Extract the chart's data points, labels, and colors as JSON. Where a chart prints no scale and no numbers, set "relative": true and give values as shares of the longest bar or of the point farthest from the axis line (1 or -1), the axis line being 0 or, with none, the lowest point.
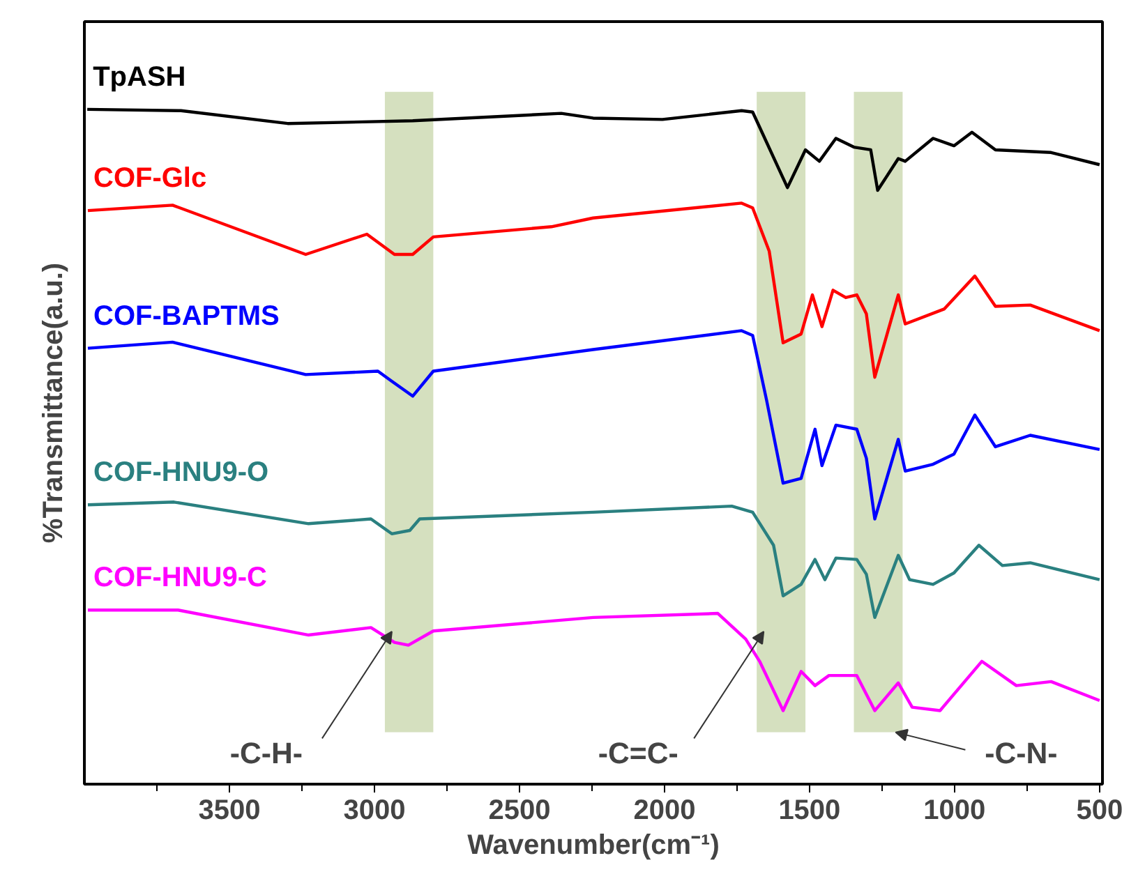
{
  "chart_data": {
    "type": "line",
    "relative": true,
    "xlabel": "Wavenumber(cm⁻¹)",
    "ylabel": "%Transmittance(a.u.)",
    "xlim": [
      4000,
      490
    ],
    "xticks": [
      {
        "value": 3750,
        "label": null
      },
      3500,
      {
        "value": 3250,
        "label": null
      },
      3000,
      {
        "value": 2750,
        "label": null
      },
      2500,
      {
        "value": 2250,
        "label": null
      },
      2000,
      {
        "value": 1750,
        "label": null
      },
      1500,
      {
        "value": 1250,
        "label": null
      },
      1000,
      {
        "value": 750,
        "label": null
      },
      500
    ],
    "legend": false,
    "grid": false,
    "series": [
      {
        "name": "TpASH",
        "color": "#000000",
        "x": [
          3990,
          3667,
          3299,
          2868,
          2356,
          2246,
          2007,
          1734,
          1696,
          1576,
          1514,
          1466,
          1409,
          1347,
          1289,
          1265,
          1194,
          1170,
          1074,
          1002,
          940,
          859,
          667,
          500
        ],
        "values": [
          1.0,
          0.998,
          0.979,
          0.983,
          0.994,
          0.987,
          0.985,
          0.998,
          0.996,
          0.884,
          0.94,
          0.923,
          0.957,
          0.944,
          0.94,
          0.88,
          0.927,
          0.923,
          0.957,
          0.946,
          0.966,
          0.94,
          0.936,
          0.918
        ]
      },
      {
        "name": "COF-Glc",
        "color": "#ff0000",
        "x": [
          3988,
          3696,
          3237,
          3026,
          2931,
          2868,
          2797,
          2390,
          2246,
          1734,
          1696,
          1639,
          1591,
          1529,
          1490,
          1457,
          1419,
          1375,
          1337,
          1304,
          1275,
          1194,
          1170,
          1036,
          930,
          859,
          739,
          500
        ],
        "values": [
          0.85,
          0.858,
          0.785,
          0.815,
          0.785,
          0.785,
          0.811,
          0.826,
          0.839,
          0.861,
          0.854,
          0.79,
          0.654,
          0.667,
          0.725,
          0.678,
          0.732,
          0.721,
          0.725,
          0.697,
          0.603,
          0.725,
          0.682,
          0.704,
          0.753,
          0.708,
          0.71,
          0.672
        ]
      },
      {
        "name": "COF-BAPTMS",
        "color": "#0000ff",
        "x": [
          3988,
          3696,
          3237,
          2988,
          2940,
          2868,
          2797,
          2246,
          1734,
          1696,
          1648,
          1591,
          1529,
          1481,
          1457,
          1409,
          1337,
          1304,
          1275,
          1194,
          1170,
          1074,
          1002,
          930,
          859,
          739,
          500
        ],
        "values": [
          0.646,
          0.655,
          0.607,
          0.612,
          0.597,
          0.575,
          0.612,
          0.644,
          0.672,
          0.665,
          0.569,
          0.446,
          0.453,
          0.526,
          0.472,
          0.532,
          0.526,
          0.483,
          0.393,
          0.511,
          0.464,
          0.474,
          0.489,
          0.547,
          0.5,
          0.517,
          0.496
        ]
      },
      {
        "name": "COF-HNU9-O",
        "color": "#2a8080",
        "x": [
          3988,
          3691,
          3227,
          3012,
          2940,
          2878,
          2844,
          2246,
          1768,
          1696,
          1624,
          1591,
          1529,
          1481,
          1447,
          1409,
          1337,
          1304,
          1275,
          1194,
          1155,
          1074,
          1002,
          916,
          835,
          739,
          500
        ],
        "values": [
          0.414,
          0.418,
          0.386,
          0.393,
          0.371,
          0.376,
          0.393,
          0.403,
          0.412,
          0.403,
          0.354,
          0.279,
          0.296,
          0.333,
          0.303,
          0.335,
          0.333,
          0.311,
          0.247,
          0.339,
          0.303,
          0.296,
          0.313,
          0.354,
          0.324,
          0.328,
          0.303
        ]
      },
      {
        "name": "COF-HNU9-C",
        "color": "#ff00ff",
        "x": [
          3988,
          3677,
          3227,
          3012,
          2931,
          2883,
          2797,
          2246,
          1816,
          1720,
          1672,
          1591,
          1529,
          1481,
          1433,
          1337,
          1275,
          1194,
          1146,
          1050,
          906,
          787,
          667,
          500
        ],
        "values": [
          0.258,
          0.258,
          0.221,
          0.232,
          0.21,
          0.206,
          0.227,
          0.247,
          0.253,
          0.215,
          0.182,
          0.109,
          0.167,
          0.146,
          0.161,
          0.161,
          0.109,
          0.15,
          0.114,
          0.109,
          0.182,
          0.146,
          0.152,
          0.124
        ]
      }
    ],
    "bands": [
      {
        "axis": "x",
        "from": 2964,
        "to": 2797,
        "color": "#d5e0bf",
        "label": "-C-H-"
      },
      {
        "axis": "x",
        "from": 1682,
        "to": 1514,
        "color": "#d5e0bf",
        "label": "-C=C-"
      },
      {
        "axis": "x",
        "from": 1347,
        "to": 1179,
        "color": "#d5e0bf",
        "label": "-C-N-"
      }
    ]
  }
}
